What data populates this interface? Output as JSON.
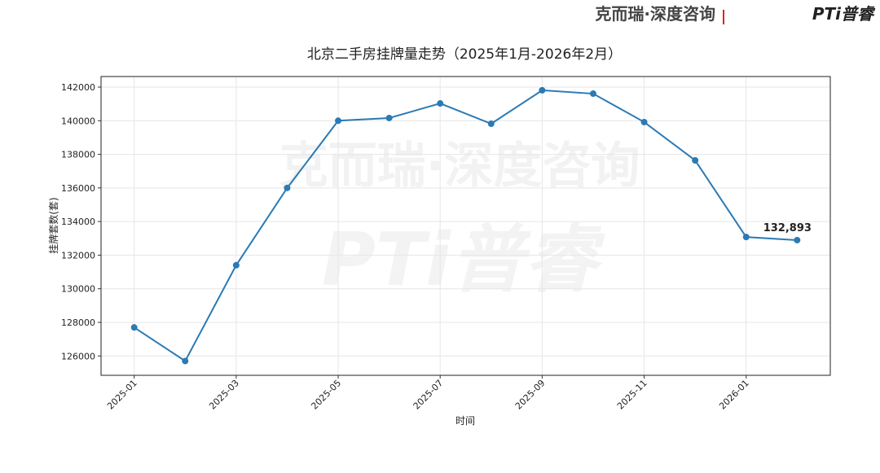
{
  "header": {
    "brand": "克而瑞·深度咨询",
    "logo": "PTi普睿"
  },
  "chart_data": {
    "type": "line",
    "title": "北京二手房挂牌量走势（2025年1月-2026年2月）",
    "xlabel": "时间",
    "ylabel": "挂牌套数(套)",
    "x": [
      "2025-01",
      "2025-02",
      "2025-03",
      "2025-04",
      "2025-05",
      "2025-06",
      "2025-07",
      "2025-08",
      "2025-09",
      "2025-10",
      "2025-11",
      "2025-12",
      "2026-01",
      "2026-02"
    ],
    "series": [
      {
        "color": "#2a7ab4",
        "values": [
          127700,
          125700,
          131400,
          136000,
          140000,
          140160,
          141030,
          139820,
          141810,
          141610,
          139920,
          137640,
          133080,
          132893
        ],
        "value_labels": [
          null,
          null,
          null,
          null,
          null,
          null,
          null,
          null,
          null,
          null,
          null,
          null,
          null,
          "132,893"
        ]
      }
    ],
    "xticks": [
      "2025-01",
      "2025-03",
      "2025-05",
      "2025-07",
      "2025-09",
      "2025-11",
      "2026-01"
    ],
    "ylim": [
      124850,
      142630
    ],
    "yticks": [
      126000,
      128000,
      130000,
      132000,
      134000,
      136000,
      138000,
      140000,
      142000
    ],
    "grid": true
  }
}
